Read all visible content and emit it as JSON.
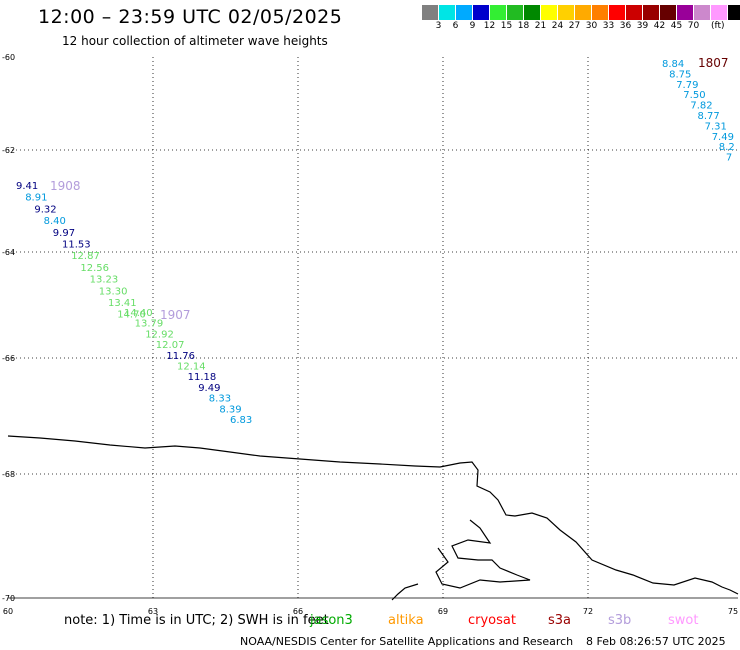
{
  "header": {
    "title": "12:00 – 23:59 UTC 02/05/2025",
    "subtitle": "12 hour collection of altimeter wave heights"
  },
  "scale": {
    "colors": [
      "#808080",
      "#00e5e5",
      "#00aaff",
      "#0000cc",
      "#33ee33",
      "#22bb22",
      "#008800",
      "#ffff00",
      "#ffd000",
      "#ffaa00",
      "#ff7f00",
      "#ff0000",
      "#cc0000",
      "#990000",
      "#660000",
      "#990099",
      "#cc88cc",
      "#ff99ff",
      "#000000"
    ],
    "labels": [
      "3",
      "6",
      "9",
      "12",
      "15",
      "18",
      "21",
      "24",
      "27",
      "30",
      "33",
      "36",
      "39",
      "42",
      "45",
      "70"
    ],
    "unit": "(ft)"
  },
  "axes": {
    "lat_labels": [
      "-60",
      "-62",
      "-64",
      "-66",
      "-68",
      "-70"
    ],
    "lon_labels": [
      "60",
      "63",
      "66",
      "69",
      "72",
      "75"
    ]
  },
  "tracks": [
    {
      "label": "1908",
      "label_color": "#b39ddb",
      "values": [
        {
          "v": "9.41",
          "c": "#000080"
        },
        {
          "v": "8.91",
          "c": "#0099dd"
        },
        {
          "v": "9.32",
          "c": "#000080"
        },
        {
          "v": "8.40",
          "c": "#0099dd"
        },
        {
          "v": "9.97",
          "c": "#000080"
        },
        {
          "v": "11.53",
          "c": "#000080"
        },
        {
          "v": "12.87",
          "c": "#66dd66"
        },
        {
          "v": "12.56",
          "c": "#66dd66"
        },
        {
          "v": "13.23",
          "c": "#66dd66"
        },
        {
          "v": "13.30",
          "c": "#66dd66"
        },
        {
          "v": "13.41",
          "c": "#66dd66"
        },
        {
          "v": "14.70",
          "c": "#66dd66"
        }
      ]
    },
    {
      "label": "1907",
      "label_color": "#b39ddb",
      "values": [
        {
          "v": "14.40",
          "c": "#66dd66"
        },
        {
          "v": "13.79",
          "c": "#66dd66"
        },
        {
          "v": "12.92",
          "c": "#66dd66"
        },
        {
          "v": "12.07",
          "c": "#66dd66"
        },
        {
          "v": "11.76",
          "c": "#000080"
        },
        {
          "v": "12.14",
          "c": "#66dd66"
        },
        {
          "v": "11.18",
          "c": "#000080"
        },
        {
          "v": "9.49",
          "c": "#000080"
        },
        {
          "v": "8.33",
          "c": "#0099dd"
        },
        {
          "v": "8.39",
          "c": "#0099dd"
        },
        {
          "v": "6.83",
          "c": "#0099dd"
        }
      ]
    },
    {
      "label": "1807",
      "label_color": "#660000",
      "values": [
        {
          "v": "8.84",
          "c": "#0099dd"
        },
        {
          "v": "8.75",
          "c": "#0099dd"
        },
        {
          "v": "7.79",
          "c": "#0099dd"
        },
        {
          "v": "7.50",
          "c": "#0099dd"
        },
        {
          "v": "7.82",
          "c": "#0099dd"
        },
        {
          "v": "8.77",
          "c": "#0099dd"
        },
        {
          "v": "7.31",
          "c": "#0099dd"
        },
        {
          "v": "7.49",
          "c": "#0099dd"
        },
        {
          "v": "8.2",
          "c": "#0099dd"
        },
        {
          "v": "7",
          "c": "#0099dd"
        }
      ]
    }
  ],
  "footer": {
    "note": "note:  1) Time is in UTC; 2) SWH is in feet",
    "satellites": [
      {
        "name": "jason3",
        "color": "#00aa00"
      },
      {
        "name": "altika",
        "color": "#ff9900"
      },
      {
        "name": "cryosat",
        "color": "#ff0000"
      },
      {
        "name": "s3a",
        "color": "#990000"
      },
      {
        "name": "s3b",
        "color": "#b39ddb"
      },
      {
        "name": "swot",
        "color": "#ff99ff"
      }
    ],
    "credit": "NOAA/NESDIS Center for Satellite Applications and Research",
    "timestamp": "8 Feb 08:26:57 UTC 2025"
  }
}
